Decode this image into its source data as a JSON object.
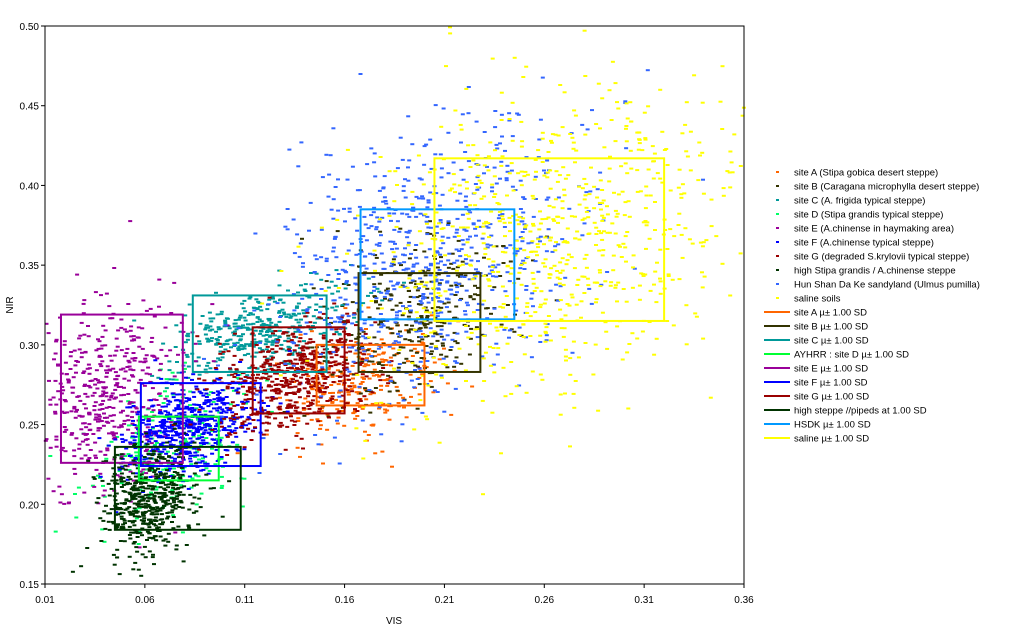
{
  "chart_data": {
    "type": "scatter",
    "title": "",
    "xlabel": "VIS",
    "ylabel": "NIR",
    "xlim": [
      0.01,
      0.36
    ],
    "ylim": [
      0.15,
      0.5
    ],
    "x_ticks": [
      "0.01",
      "0.06",
      "0.11",
      "0.16",
      "0.21",
      "0.26",
      "0.31",
      "0.36"
    ],
    "y_ticks": [
      "0.15",
      "0.20",
      "0.25",
      "0.30",
      "0.35",
      "0.40",
      "0.45",
      "0.50"
    ],
    "grid": false,
    "legend_position": "right",
    "series": [
      {
        "name": "site A (Stipa gobica desert steppe)",
        "color": "#ff6600",
        "kind": "points",
        "center": [
          0.165,
          0.275
        ],
        "spread": [
          0.02,
          0.016
        ],
        "n": 260
      },
      {
        "name": "site B (Caragana microphylla desert steppe)",
        "color": "#333300",
        "kind": "points",
        "center": [
          0.195,
          0.315
        ],
        "spread": [
          0.024,
          0.022
        ],
        "n": 320
      },
      {
        "name": "site C (A. frigida typical steppe)",
        "color": "#009999",
        "kind": "points",
        "center": [
          0.118,
          0.31
        ],
        "spread": [
          0.024,
          0.013
        ],
        "n": 380
      },
      {
        "name": "site D (Stipa grandis typical steppe)",
        "color": "#00ff66",
        "kind": "points",
        "center": [
          0.075,
          0.235
        ],
        "spread": [
          0.018,
          0.02
        ],
        "n": 240
      },
      {
        "name": "site E (A.chinense in haymaking area)",
        "color": "#990099",
        "kind": "points",
        "center": [
          0.04,
          0.27
        ],
        "spread": [
          0.018,
          0.03
        ],
        "n": 480
      },
      {
        "name": "site F (A.chinense typical steppe)",
        "color": "#0000ff",
        "kind": "points",
        "center": [
          0.082,
          0.25
        ],
        "spread": [
          0.016,
          0.014
        ],
        "n": 560
      },
      {
        "name": "site G (degraded S.krylovii typical steppe)",
        "color": "#990000",
        "kind": "points",
        "center": [
          0.135,
          0.28
        ],
        "spread": [
          0.02,
          0.016
        ],
        "n": 560
      },
      {
        "name": "high Stipa grandis / A.chinense steppe",
        "color": "#003300",
        "kind": "points",
        "center": [
          0.062,
          0.205
        ],
        "spread": [
          0.012,
          0.018
        ],
        "n": 520
      },
      {
        "name": "Hun Shan Da Ke sandyland (Ulmus pumilla)",
        "color": "#3366ff",
        "kind": "points",
        "center": [
          0.2,
          0.352
        ],
        "spread": [
          0.038,
          0.04
        ],
        "n": 720
      },
      {
        "name": "saline soils",
        "color": "#ffff00",
        "kind": "points",
        "center": [
          0.265,
          0.365
        ],
        "spread": [
          0.05,
          0.05
        ],
        "n": 760
      },
      {
        "name": "site A µ± 1.00 SD",
        "color": "#ff6600",
        "kind": "box",
        "box": [
          0.146,
          0.2,
          0.262,
          0.3
        ]
      },
      {
        "name": "site B µ± 1.00 SD",
        "color": "#333300",
        "kind": "box",
        "box": [
          0.167,
          0.228,
          0.283,
          0.345
        ]
      },
      {
        "name": "site C µ± 1.00 SD",
        "color": "#009999",
        "kind": "box",
        "box": [
          0.084,
          0.151,
          0.283,
          0.331
        ]
      },
      {
        "name": "AYHRR : site D µ± 1.00 SD",
        "color": "#00ff33",
        "kind": "box",
        "box": [
          0.057,
          0.097,
          0.215,
          0.255
        ]
      },
      {
        "name": "site E µ± 1.00 SD",
        "color": "#990099",
        "kind": "box",
        "box": [
          0.018,
          0.079,
          0.226,
          0.319
        ]
      },
      {
        "name": "site F µ± 1.00 SD",
        "color": "#0000ff",
        "kind": "box",
        "box": [
          0.058,
          0.118,
          0.224,
          0.276
        ]
      },
      {
        "name": "site G µ± 1.00 SD",
        "color": "#990000",
        "kind": "box",
        "box": [
          0.114,
          0.16,
          0.257,
          0.311
        ]
      },
      {
        "name": "high  steppe //pipeds at 1.00 SD",
        "color": "#003300",
        "kind": "box",
        "box": [
          0.045,
          0.108,
          0.184,
          0.236
        ]
      },
      {
        "name": "HSDK µ± 1.00 SD",
        "color": "#0099ff",
        "kind": "box",
        "box": [
          0.168,
          0.245,
          0.316,
          0.385
        ]
      },
      {
        "name": "saline µ± 1.00 SD",
        "color": "#ffff00",
        "kind": "box",
        "box": [
          0.205,
          0.32,
          0.315,
          0.417
        ]
      }
    ]
  }
}
